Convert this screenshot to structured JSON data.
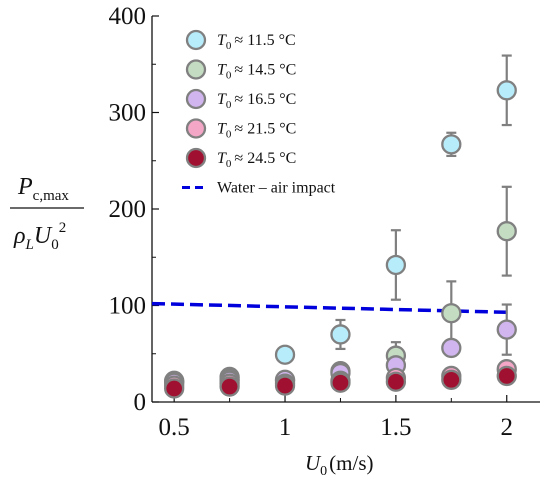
{
  "chart_data": {
    "type": "scatter",
    "x": [
      0.5,
      0.75,
      1.0,
      1.25,
      1.5,
      1.75,
      2.0
    ],
    "xlim": [
      0.4,
      2.15
    ],
    "ylim": [
      0,
      400
    ],
    "xticks": [
      "0.5",
      "1",
      "1.5",
      "2"
    ],
    "xtick_values": [
      0.5,
      1.0,
      1.5,
      2.0
    ],
    "xticks_minor": [
      0.75,
      1.25,
      1.75
    ],
    "yticks": [
      "0",
      "100",
      "200",
      "300",
      "400"
    ],
    "ytick_values": [
      0,
      100,
      200,
      300,
      400
    ],
    "xlabel": {
      "main": "U",
      "sub": "0",
      "unit": "(m/s)"
    },
    "ylabel": {
      "num_main": "P",
      "num_sub": "c,max",
      "den_rho": "ρ",
      "den_rho_sub": "L",
      "den_u": "U",
      "den_u_sub": "0",
      "den_u_sup": "2"
    },
    "series": [
      {
        "legend": "≈ 11.5 °C",
        "sym": "T",
        "sub": "0",
        "color": "#b7ecfb",
        "values": [
          22,
          26,
          49,
          70,
          142,
          267,
          323
        ],
        "errors": [
          null,
          null,
          8,
          15,
          36,
          12,
          36
        ]
      },
      {
        "legend": "≈ 14.5 °C",
        "sym": "T",
        "sub": "0",
        "color": "#c3dcc2",
        "values": [
          21,
          24,
          22,
          32,
          48,
          92,
          177
        ],
        "errors": [
          null,
          null,
          null,
          null,
          14,
          33,
          46
        ]
      },
      {
        "legend": "≈ 16.5 °C",
        "sym": "T",
        "sub": "0",
        "color": "#d1b5ee",
        "values": [
          20,
          22,
          23,
          30,
          38,
          56,
          75
        ],
        "errors": [
          null,
          null,
          null,
          null,
          null,
          8,
          26
        ]
      },
      {
        "legend": "≈ 21.5 °C",
        "sym": "T",
        "sub": "0",
        "color": "#f3a6c6",
        "values": [
          17,
          19,
          19,
          22,
          25,
          27,
          34
        ],
        "errors": [
          null,
          null,
          null,
          null,
          null,
          null,
          null
        ]
      },
      {
        "legend": "≈ 24.5 °C",
        "sym": "T",
        "sub": "0",
        "color": "#a01030",
        "values": [
          14,
          16,
          17,
          20,
          21,
          23,
          27
        ],
        "errors": [
          null,
          null,
          null,
          null,
          null,
          null,
          null
        ]
      }
    ],
    "reference_line": {
      "legend": "Water – air impact",
      "color": "#0000dd",
      "style": "dashed",
      "x": [
        0.4,
        2.0
      ],
      "values": [
        102,
        93
      ]
    },
    "marker_edge_color": "#808080",
    "legend_position": "top-left"
  }
}
